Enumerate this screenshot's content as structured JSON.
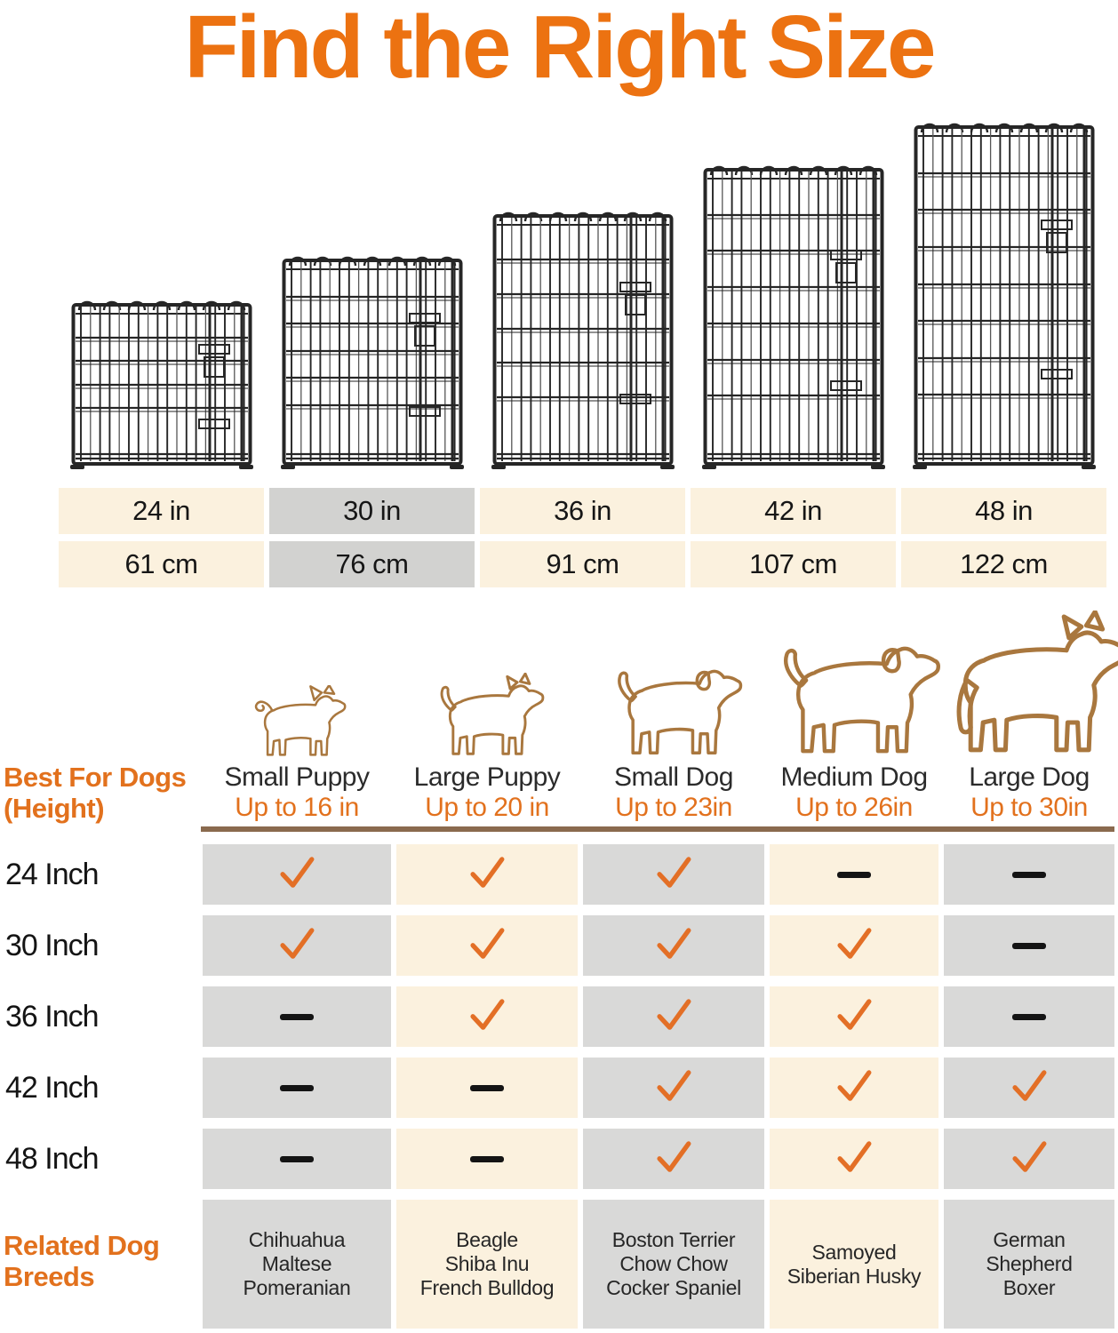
{
  "title": "Find the Right Size",
  "colors": {
    "title_orange": "#EC7211",
    "accent_orange": "#E2711D",
    "check_orange": "#E36F26",
    "cream_cell": "#FBF1DE",
    "gray_cell": "#D9D9D8",
    "highlight_gray_cell": "#D2D2D0",
    "divider_brown": "#8A6A4E",
    "dog_outline_brown": "#A9773E",
    "wire_black": "#262626"
  },
  "panels": [
    {
      "size_in": "24 in",
      "size_cm": "61 cm"
    },
    {
      "size_in": "30 in",
      "size_cm": "76 cm"
    },
    {
      "size_in": "36 in",
      "size_cm": "91 cm"
    },
    {
      "size_in": "42 in",
      "size_cm": "107 cm"
    },
    {
      "size_in": "48 in",
      "size_cm": "122 cm"
    }
  ],
  "size_table": {
    "highlight_column_index": 1
  },
  "best_for": {
    "label_line1": "Best For Dogs",
    "label_line2": "(Height)",
    "columns": [
      {
        "name": "Small Puppy",
        "max_height": "Up to 16 in",
        "icon": "small-puppy-icon"
      },
      {
        "name": "Large Puppy",
        "max_height": "Up to 20 in",
        "icon": "large-puppy-icon"
      },
      {
        "name": "Small Dog",
        "max_height": "Up to 23in",
        "icon": "small-dog-icon"
      },
      {
        "name": "Medium Dog",
        "max_height": "Up to 26in",
        "icon": "medium-dog-icon"
      },
      {
        "name": "Large Dog",
        "max_height": "Up to 30in",
        "icon": "large-dog-icon"
      }
    ]
  },
  "matrix": {
    "rows": [
      {
        "label": "24 Inch",
        "marks": [
          "check",
          "check",
          "check",
          "dash",
          "dash"
        ]
      },
      {
        "label": "30 Inch",
        "marks": [
          "check",
          "check",
          "check",
          "check",
          "dash"
        ]
      },
      {
        "label": "36 Inch",
        "marks": [
          "dash",
          "check",
          "check",
          "check",
          "dash"
        ]
      },
      {
        "label": "42 Inch",
        "marks": [
          "dash",
          "dash",
          "check",
          "check",
          "check"
        ]
      },
      {
        "label": "48 Inch",
        "marks": [
          "dash",
          "dash",
          "check",
          "check",
          "check"
        ]
      }
    ]
  },
  "related_breeds": {
    "label_line1": "Related Dog",
    "label_line2": "Breeds",
    "columns": [
      [
        "Chihuahua",
        "Maltese",
        "Pomeranian"
      ],
      [
        "Beagle",
        "Shiba Inu",
        "French Bulldog"
      ],
      [
        "Boston Terrier",
        "Chow Chow",
        "Cocker Spaniel"
      ],
      [
        "Samoyed",
        "Siberian Husky"
      ],
      [
        "German",
        "Shepherd",
        "Boxer"
      ]
    ]
  }
}
